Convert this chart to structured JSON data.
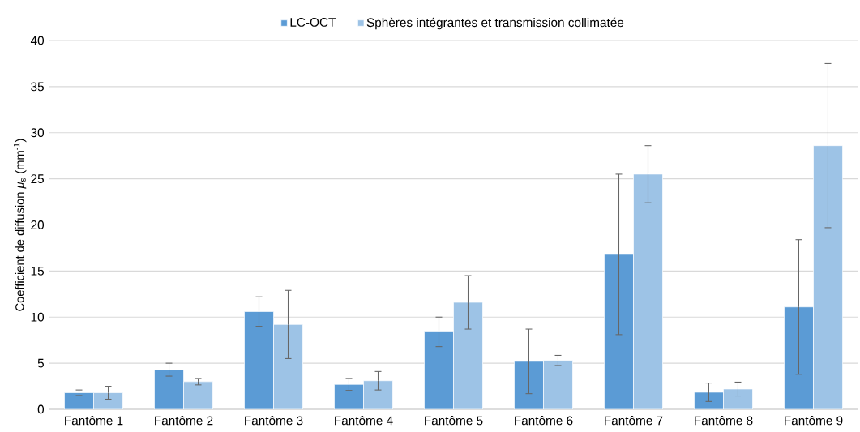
{
  "chart_data": {
    "type": "bar",
    "ylabel": "Coefficient de diffusion *μ*$_{s}$ (mm$^{-1}$)",
    "categories": [
      "Fantôme 1",
      "Fantôme 2",
      "Fantôme 3",
      "Fantôme 4",
      "Fantôme 5",
      "Fantôme 6",
      "Fantôme 7",
      "Fantôme 8",
      "Fantôme 9"
    ],
    "series": [
      {
        "name": "LC-OCT",
        "color": "#5b9bd5",
        "values": [
          1.8,
          4.3,
          10.6,
          2.7,
          8.4,
          5.2,
          16.8,
          1.85,
          11.1
        ],
        "errors": [
          0.3,
          0.7,
          1.6,
          0.65,
          1.6,
          3.5,
          8.7,
          1.0,
          7.3
        ]
      },
      {
        "name": "Sphères intégrantes et transmission collimatée",
        "color": "#9dc3e6",
        "values": [
          1.8,
          3.0,
          9.2,
          3.1,
          11.6,
          5.3,
          25.5,
          2.2,
          28.6
        ],
        "errors": [
          0.7,
          0.35,
          3.7,
          1.0,
          2.9,
          0.55,
          3.1,
          0.75,
          8.9
        ]
      }
    ],
    "ylim": [
      0,
      40
    ],
    "yticks": [
      0,
      5,
      10,
      15,
      20,
      25,
      30,
      35,
      40
    ],
    "grid": "y",
    "legend": "top"
  }
}
